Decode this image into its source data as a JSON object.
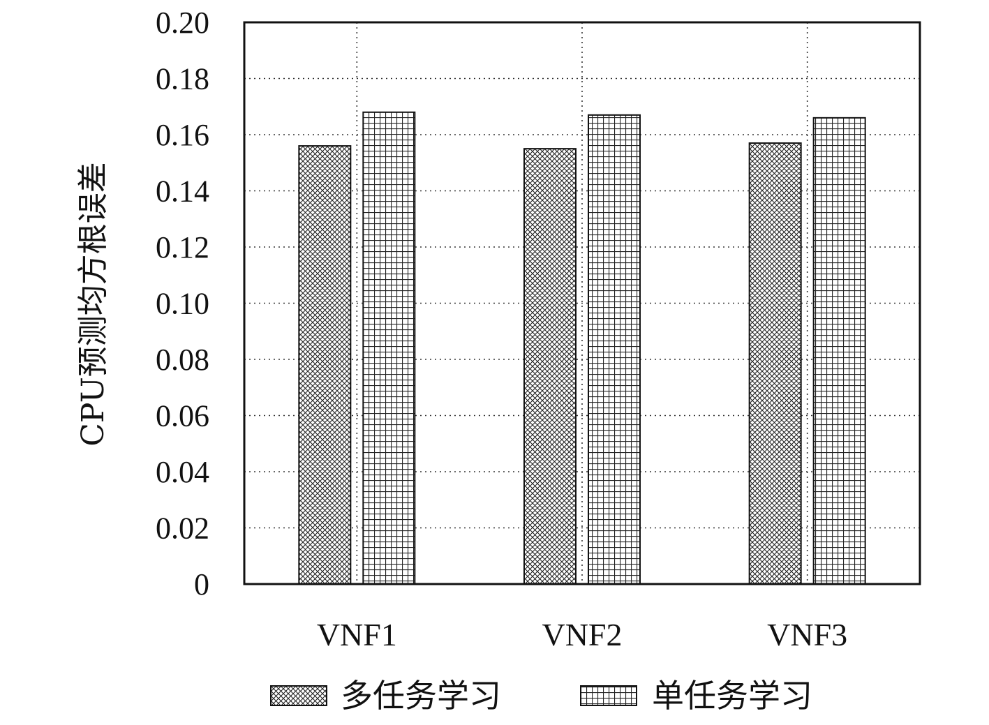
{
  "chart_data": {
    "type": "bar",
    "categories": [
      "VNF1",
      "VNF2",
      "VNF3"
    ],
    "series": [
      {
        "name": "多任务学习",
        "values": [
          0.156,
          0.155,
          0.157
        ],
        "pattern": "crosshatch"
      },
      {
        "name": "单任务学习",
        "values": [
          0.168,
          0.167,
          0.166
        ],
        "pattern": "grid"
      }
    ],
    "ylabel": "CPU预测均方根误差",
    "xlabel": "",
    "ylim": [
      0,
      0.2
    ],
    "yticks": [
      "0",
      "0.02",
      "0.04",
      "0.06",
      "0.08",
      "0.10",
      "0.12",
      "0.14",
      "0.16",
      "0.18",
      "0.20"
    ],
    "grid": true,
    "legend_position": "bottom",
    "colors": {
      "bar_stroke": "#111111",
      "pattern": "#222222",
      "grid": "#333333",
      "background": "#ffffff"
    }
  }
}
